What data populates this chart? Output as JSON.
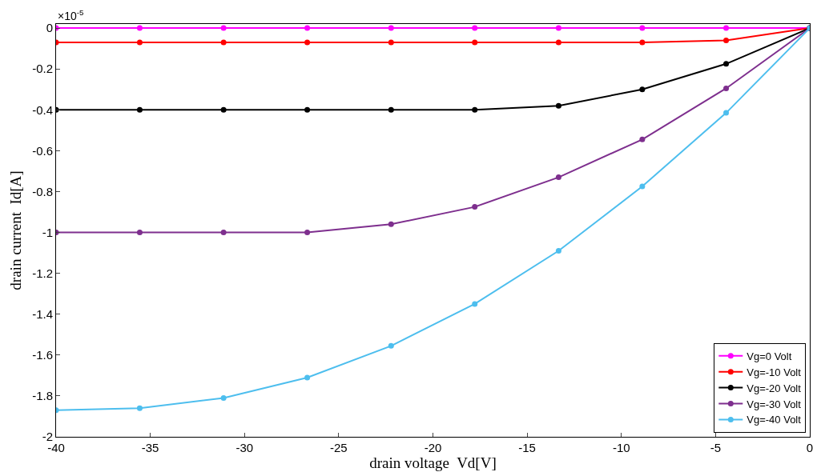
{
  "chart_data": {
    "type": "line",
    "xlabel": "drain voltage  Vd[V]",
    "ylabel": "drain current  Id[A]",
    "annotations": [
      "×10$^{-5}$"
    ],
    "x": [
      -40,
      -35.56,
      -31.11,
      -26.67,
      -22.22,
      -17.78,
      -13.33,
      -8.89,
      -4.44,
      0
    ],
    "series": [
      {
        "name": "Vg=0 Volt",
        "color": "#ff00ff",
        "values": [
          0,
          0,
          0,
          0,
          0,
          0,
          0,
          0,
          0,
          0
        ]
      },
      {
        "name": "Vg=-10 Volt",
        "color": "#ff0000",
        "values": [
          -0.07,
          -0.07,
          -0.07,
          -0.07,
          -0.07,
          -0.07,
          -0.07,
          -0.07,
          -0.06,
          0
        ]
      },
      {
        "name": "Vg=-20 Volt",
        "color": "#000000",
        "values": [
          -0.4,
          -0.4,
          -0.4,
          -0.4,
          -0.4,
          -0.4,
          -0.38,
          -0.3,
          -0.175,
          0
        ]
      },
      {
        "name": "Vg=-30 Volt",
        "color": "#7e2f8e",
        "values": [
          -1.0,
          -1.0,
          -1.0,
          -1.0,
          -0.96,
          -0.875,
          -0.73,
          -0.545,
          -0.295,
          0
        ]
      },
      {
        "name": "Vg=-40 Volt",
        "color": "#4dbeee",
        "values": [
          -1.87,
          -1.86,
          -1.81,
          -1.71,
          -1.555,
          -1.35,
          -1.09,
          -0.775,
          -0.415,
          0
        ]
      }
    ],
    "xlim": [
      -40,
      0
    ],
    "xticks": [
      -40,
      -35,
      -30,
      -25,
      -20,
      -15,
      -10,
      -5,
      0
    ],
    "ylim": [
      -2,
      0.02
    ],
    "yticks": [
      -2,
      -1.8,
      -1.6,
      -1.4,
      -1.2,
      -1,
      -0.8,
      -0.6,
      -0.4,
      -0.2,
      0
    ],
    "legend": "bottom right",
    "marker": "circle",
    "line_style": "solid"
  }
}
